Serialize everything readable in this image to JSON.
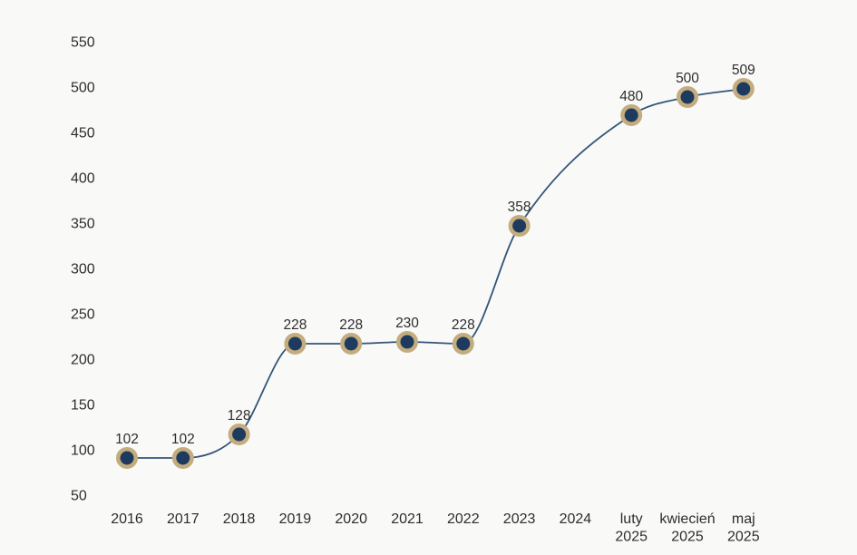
{
  "chart_data": {
    "type": "line",
    "title": "",
    "xlabel": "",
    "ylabel": "",
    "ylim": [
      50,
      550
    ],
    "grid": "off",
    "legend": "none",
    "y_ticks": [
      "550",
      "500",
      "450",
      "400",
      "350",
      "300",
      "250",
      "200",
      "150",
      "100",
      "50"
    ],
    "y_tick_values": [
      550,
      500,
      450,
      400,
      350,
      300,
      250,
      200,
      150,
      100,
      50
    ],
    "categories": [
      {
        "line1": "2016",
        "line2": ""
      },
      {
        "line1": "2017",
        "line2": ""
      },
      {
        "line1": "2018",
        "line2": ""
      },
      {
        "line1": "2019",
        "line2": ""
      },
      {
        "line1": "2020",
        "line2": ""
      },
      {
        "line1": "2021",
        "line2": ""
      },
      {
        "line1": "2022",
        "line2": ""
      },
      {
        "line1": "2023",
        "line2": ""
      },
      {
        "line1": "2024",
        "line2": ""
      },
      {
        "line1": "luty",
        "line2": "2025"
      },
      {
        "line1": "kwiecień",
        "line2": "2025"
      },
      {
        "line1": "maj",
        "line2": "2025"
      }
    ],
    "points": [
      {
        "category": "2016",
        "category_index": 0,
        "value": 102,
        "label": "102"
      },
      {
        "category": "2017",
        "category_index": 1,
        "value": 102,
        "label": "102"
      },
      {
        "category": "2018",
        "category_index": 2,
        "value": 128,
        "label": "128"
      },
      {
        "category": "2019",
        "category_index": 3,
        "value": 228,
        "label": "228"
      },
      {
        "category": "2020",
        "category_index": 4,
        "value": 228,
        "label": "228"
      },
      {
        "category": "2021",
        "category_index": 5,
        "value": 230,
        "label": "230"
      },
      {
        "category": "2022",
        "category_index": 6,
        "value": 228,
        "label": "228"
      },
      {
        "category": "2023",
        "category_index": 7,
        "value": 358,
        "label": "358"
      },
      {
        "category": "luty 2025",
        "category_index": 9,
        "value": 480,
        "label": "480"
      },
      {
        "category": "kwiecień 2025",
        "category_index": 10,
        "value": 500,
        "label": "500"
      },
      {
        "category": "maj 2025",
        "category_index": 11,
        "value": 509,
        "label": "509"
      }
    ],
    "colors": {
      "background": "#f9f9f8",
      "line": "#335578",
      "marker_fill": "#1f3a5f",
      "marker_ring": "#c3ad7e",
      "data_label_text": "#2d2d2d",
      "axis_text": "#2d2d2d"
    }
  }
}
